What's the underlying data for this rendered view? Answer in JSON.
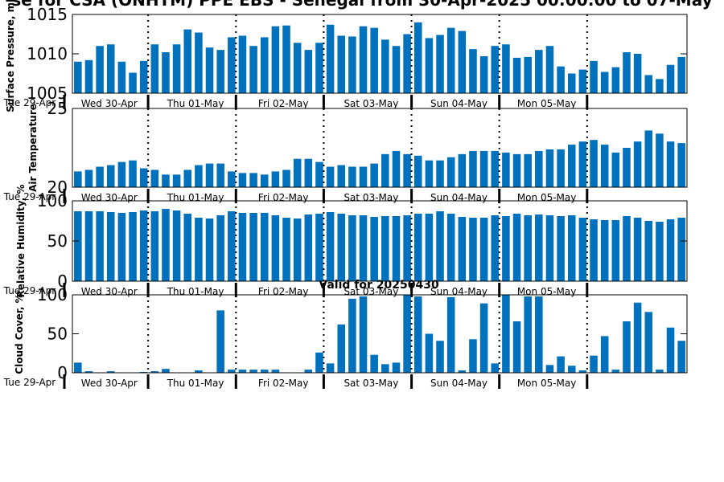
{
  "title": "se for CSA (ONHTM) PPE EBS  - Senegal from 30-Apr-2025 00:00:00 to 07-May",
  "subtitle": "Valid for 20250430",
  "colors": {
    "bar": "#0072bd",
    "axis": "#000000"
  },
  "x_labels": {
    "origin": "Tue 29-Apr",
    "days": [
      "Wed 30-Apr",
      "Thu 01-May",
      "Fri 02-May",
      "Sat 03-May",
      "Sun 04-May",
      "Mon 05-May"
    ]
  },
  "chart_data": [
    {
      "type": "bar",
      "ylabel": "Surface Pressure, mb",
      "ylim": [
        1005,
        1015
      ],
      "yticks": [
        1005,
        1010,
        1015
      ],
      "grid": false,
      "values": [
        1009.0,
        1009.2,
        1011.0,
        1011.2,
        1009.0,
        1007.6,
        1009.1,
        1011.2,
        1010.2,
        1011.2,
        1013.1,
        1012.7,
        1010.8,
        1010.5,
        1012.1,
        1012.3,
        1011.0,
        1012.1,
        1013.5,
        1013.6,
        1011.4,
        1010.5,
        1011.4,
        1013.7,
        1012.3,
        1012.2,
        1013.5,
        1013.3,
        1011.8,
        1011.0,
        1012.5,
        1014.0,
        1012.0,
        1012.4,
        1013.3,
        1012.9,
        1010.6,
        1009.7,
        1011.0,
        1011.2,
        1009.5,
        1009.6,
        1010.5,
        1011.0,
        1008.4,
        1007.5,
        1008.0,
        1009.1,
        1007.7,
        1008.3,
        1010.2,
        1010.0,
        1007.3,
        1006.8,
        1008.6,
        1009.6
      ]
    },
    {
      "type": "bar",
      "ylabel": "Air Temperature",
      "ylim": [
        20,
        25
      ],
      "yticks": [
        20,
        25
      ],
      "grid": false,
      "values": [
        21.0,
        21.1,
        21.3,
        21.4,
        21.6,
        21.7,
        21.2,
        21.1,
        20.8,
        20.8,
        21.1,
        21.4,
        21.5,
        21.5,
        21.0,
        20.9,
        20.9,
        20.8,
        21.0,
        21.1,
        21.8,
        21.8,
        21.6,
        21.3,
        21.4,
        21.3,
        21.3,
        21.5,
        22.1,
        22.3,
        22.1,
        22.0,
        21.7,
        21.7,
        21.9,
        22.1,
        22.3,
        22.3,
        22.3,
        22.2,
        22.1,
        22.1,
        22.3,
        22.4,
        22.4,
        22.7,
        22.9,
        23.0,
        22.7,
        22.2,
        22.5,
        22.9,
        23.6,
        23.4,
        22.9,
        22.8
      ]
    },
    {
      "type": "bar",
      "ylabel": "Relative Humidity, %",
      "ylim": [
        0,
        100
      ],
      "yticks": [
        0,
        50,
        100
      ],
      "grid": false,
      "values": [
        87,
        87,
        87,
        86,
        85,
        86,
        88,
        87,
        90,
        88,
        84,
        79,
        78,
        82,
        87,
        85,
        85,
        85,
        82,
        79,
        78,
        83,
        84,
        86,
        84,
        82,
        82,
        80,
        81,
        81,
        82,
        84,
        84,
        87,
        84,
        80,
        79,
        79,
        82,
        81,
        84,
        82,
        83,
        82,
        81,
        82,
        79,
        77,
        76,
        76,
        81,
        79,
        75,
        74,
        77,
        79
      ]
    },
    {
      "type": "bar",
      "ylabel": "Cloud Cover, %",
      "ylim": [
        0,
        100
      ],
      "yticks": [
        0,
        50,
        100
      ],
      "grid": false,
      "values": [
        13,
        2,
        0,
        2,
        0,
        0,
        1,
        2,
        5,
        0,
        0,
        3,
        0,
        80,
        4,
        4,
        4,
        4,
        4,
        0,
        0,
        4,
        26,
        12,
        62,
        95,
        98,
        23,
        11,
        13,
        100,
        98,
        50,
        41,
        97,
        3,
        43,
        89,
        12,
        100,
        66,
        98,
        98,
        10,
        21,
        9,
        3,
        22,
        47,
        4,
        66,
        90,
        78,
        4,
        58,
        41
      ]
    }
  ]
}
